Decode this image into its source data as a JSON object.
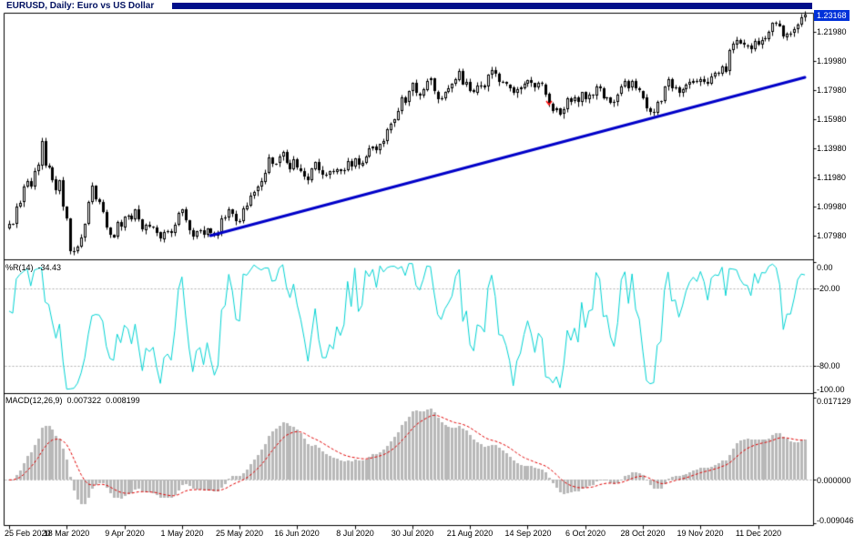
{
  "colors": {
    "background": "#ffffff",
    "border": "#000000",
    "axis_text": "#000000",
    "titlebar_bar": "#000f8a",
    "title_text": "#001060",
    "price_tag_bg": "#0031d9",
    "price_tag_text": "#ffffff",
    "trendline": "#0000c8",
    "wpr_line": "#00d2d2",
    "macd_histogram": "#b8b8b8",
    "macd_signal": "#e00000",
    "marker": "#ff0000",
    "grid_dash": "#b0b0b0",
    "candle_up": "#ffffff",
    "candle_down": "#000000",
    "candle_border": "#000000"
  },
  "chart_data": [
    {
      "type": "candlestick",
      "title": "EURUSD, Daily: Euro vs US Dollar",
      "symbol": "EURUSD",
      "timeframe": "Daily",
      "description": "Euro vs US Dollar",
      "current_price": 1.23168,
      "current_price_label": "1.23168",
      "y_axis_labels": [
        "1.21980",
        "1.19980",
        "1.17980",
        "1.15980",
        "1.13980",
        "1.11980",
        "1.09980",
        "1.07980"
      ],
      "ylim": [
        1.063625,
        1.233
      ],
      "x_tick_labels": [
        "25 Feb 2020",
        "18 Mar 2020",
        "9 Apr 2020",
        "1 May 2020",
        "25 May 2020",
        "16 Jun 2020",
        "8 Jul 2020",
        "30 Jul 2020",
        "21 Aug 2020",
        "14 Sep 2020",
        "6 Oct 2020",
        "28 Oct 2020",
        "19 Nov 2020",
        "11 Dec 2020"
      ],
      "bars_between_ticks": 16,
      "first_bar_prev_close": 1.085,
      "open_rule": "previous_close",
      "wick_model": "pseudo_random_small",
      "closes": [
        1.0882,
        1.0881,
        1.0999,
        1.1026,
        1.1134,
        1.1173,
        1.1135,
        1.124,
        1.1284,
        1.145,
        1.1282,
        1.127,
        1.1184,
        1.1106,
        1.118,
        1.0998,
        1.0916,
        1.0692,
        1.0694,
        1.0725,
        1.0789,
        1.0882,
        1.103,
        1.1141,
        1.1047,
        1.1031,
        1.0964,
        1.0858,
        1.0808,
        1.0791,
        1.0891,
        1.0858,
        1.093,
        1.0935,
        1.0913,
        1.0981,
        1.0911,
        1.084,
        1.0875,
        1.0863,
        1.0858,
        1.0822,
        1.0776,
        1.0823,
        1.083,
        1.0818,
        1.0875,
        1.0955,
        1.098,
        1.0906,
        1.0837,
        1.0794,
        1.0833,
        1.0839,
        1.0807,
        1.0848,
        1.0816,
        1.0804,
        1.082,
        1.0916,
        1.0924,
        1.0979,
        1.095,
        1.0901,
        1.0898,
        1.0984,
        1.1007,
        1.1076,
        1.1101,
        1.1134,
        1.1172,
        1.1233,
        1.1337,
        1.1291,
        1.1294,
        1.134,
        1.1373,
        1.1298,
        1.1255,
        1.1323,
        1.1264,
        1.1244,
        1.1205,
        1.1177,
        1.1261,
        1.1308,
        1.1251,
        1.1218,
        1.1218,
        1.1242,
        1.1234,
        1.1252,
        1.1239,
        1.1248,
        1.1309,
        1.1274,
        1.133,
        1.1284,
        1.13,
        1.1343,
        1.1397,
        1.141,
        1.1385,
        1.1427,
        1.1447,
        1.1527,
        1.157,
        1.1596,
        1.1656,
        1.1751,
        1.1716,
        1.1791,
        1.1847,
        1.1776,
        1.1762,
        1.1803,
        1.1863,
        1.1877,
        1.1787,
        1.1738,
        1.174,
        1.1785,
        1.1813,
        1.1842,
        1.1872,
        1.1933,
        1.1839,
        1.1858,
        1.1797,
        1.1786,
        1.1833,
        1.183,
        1.182,
        1.1903,
        1.1936,
        1.1911,
        1.1854,
        1.1853,
        1.1838,
        1.1815,
        1.1778,
        1.1802,
        1.1815,
        1.1845,
        1.1867,
        1.1846,
        1.1816,
        1.1847,
        1.1839,
        1.1772,
        1.1707,
        1.166,
        1.1672,
        1.1631,
        1.1665,
        1.1742,
        1.172,
        1.1747,
        1.1716,
        1.1784,
        1.1734,
        1.1766,
        1.1761,
        1.1826,
        1.1814,
        1.1745,
        1.1747,
        1.1708,
        1.1717,
        1.177,
        1.1823,
        1.1863,
        1.1816,
        1.186,
        1.181,
        1.1795,
        1.1746,
        1.1674,
        1.1647,
        1.164,
        1.1715,
        1.1723,
        1.1826,
        1.1874,
        1.1813,
        1.1815,
        1.1779,
        1.1803,
        1.1834,
        1.1853,
        1.1863,
        1.1854,
        1.1875,
        1.1857,
        1.1842,
        1.1893,
        1.1915,
        1.1914,
        1.1963,
        1.1926,
        1.2071,
        1.2115,
        1.2144,
        1.2121,
        1.2107,
        1.2105,
        1.2079,
        1.2136,
        1.2112,
        1.2145,
        1.2152,
        1.22,
        1.2264,
        1.2257,
        1.224,
        1.2162,
        1.2189,
        1.2189,
        1.2216,
        1.2249,
        1.2299,
        1.2317
      ],
      "trendline": {
        "from_bar": 56,
        "from_price": 1.0799,
        "to_bar": 221,
        "to_price": 1.1886,
        "color": "#0000c8",
        "width": 3
      },
      "sell_marker": {
        "bar": 150,
        "price": 1.1699,
        "color": "#ff0000"
      }
    },
    {
      "type": "line",
      "name": "%R(14)",
      "period": 14,
      "value_label": "-34.43",
      "current_value": -34.43,
      "source": "williams_percent_r_of_candles",
      "y_axis_labels": [
        "0.00",
        "-20.00",
        "-80.00",
        "-100.00"
      ],
      "ylim": [
        -100,
        0
      ],
      "level_lines": [
        -20,
        -80
      ],
      "color": "#00d2d2"
    },
    {
      "type": "bar",
      "name": "MACD(12,26,9)",
      "fast": 12,
      "slow": 26,
      "signal": 9,
      "value_main": "0.007322",
      "value_signal": "0.008199",
      "current_main": 0.007322,
      "current_signal": 0.008199,
      "source": "macd_of_closes",
      "y_axis_labels": [
        "0.017129",
        "0.000000",
        "-0.009046"
      ],
      "ylim": [
        -0.009046,
        0.017129
      ],
      "histogram_color": "#b8b8b8",
      "signal_color": "#e00000",
      "signal_style": "dashed"
    }
  ]
}
